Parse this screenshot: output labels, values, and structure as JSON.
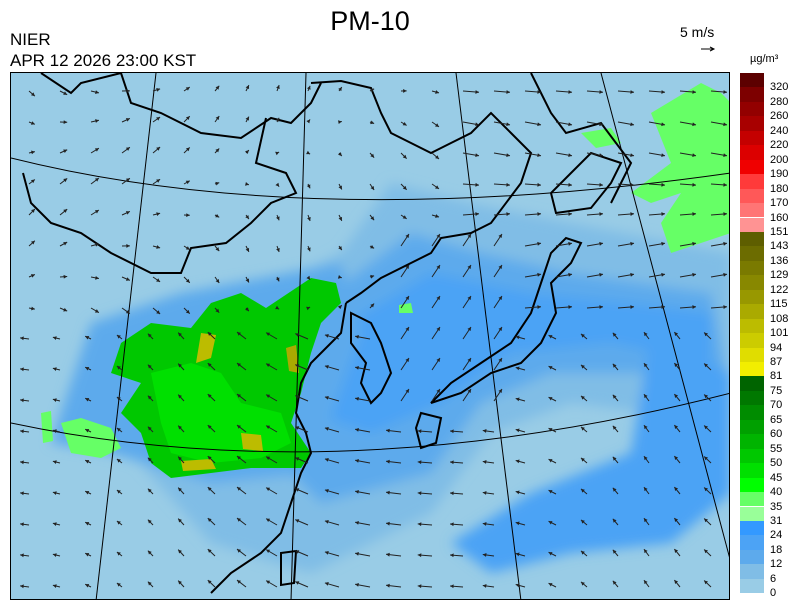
{
  "header": {
    "title": "PM-10",
    "organization": "NIER",
    "datetime": "APR 12 2026 23:00 KST",
    "wind_reference": "5 m/s"
  },
  "legend": {
    "unit": "µg/m³",
    "bins": [
      {
        "label": "320",
        "color": "#5c0000"
      },
      {
        "label": "280",
        "color": "#7d0000"
      },
      {
        "label": "260",
        "color": "#930000"
      },
      {
        "label": "240",
        "color": "#a80000"
      },
      {
        "label": "220",
        "color": "#c40000"
      },
      {
        "label": "200",
        "color": "#dc0000"
      },
      {
        "label": "190",
        "color": "#f00000"
      },
      {
        "label": "180",
        "color": "#ff3a3a"
      },
      {
        "label": "170",
        "color": "#ff5858"
      },
      {
        "label": "160",
        "color": "#ff7575"
      },
      {
        "label": "151",
        "color": "#ff9393"
      },
      {
        "label": "143",
        "color": "#5e5e00"
      },
      {
        "label": "136",
        "color": "#6c6c00"
      },
      {
        "label": "129",
        "color": "#7a7a00"
      },
      {
        "label": "122",
        "color": "#888800"
      },
      {
        "label": "115",
        "color": "#989800"
      },
      {
        "label": "108",
        "color": "#aaaa00"
      },
      {
        "label": "101",
        "color": "#bcbc00"
      },
      {
        "label": "94",
        "color": "#cccc00"
      },
      {
        "label": "87",
        "color": "#e0dd00"
      },
      {
        "label": "81",
        "color": "#f2ee00"
      },
      {
        "label": "75",
        "color": "#006400"
      },
      {
        "label": "70",
        "color": "#007800"
      },
      {
        "label": "65",
        "color": "#008c00"
      },
      {
        "label": "60",
        "color": "#00a000"
      },
      {
        "label": "55",
        "color": "#00b400"
      },
      {
        "label": "50",
        "color": "#00c800"
      },
      {
        "label": "45",
        "color": "#00e000"
      },
      {
        "label": "40",
        "color": "#00ff00"
      },
      {
        "label": "35",
        "color": "#66ff66"
      },
      {
        "label": "31",
        "color": "#99ff99"
      },
      {
        "label": "24",
        "color": "#3399ff"
      },
      {
        "label": "18",
        "color": "#4ca3f5"
      },
      {
        "label": "12",
        "color": "#5daaec"
      },
      {
        "label": "6",
        "color": "#80bde6"
      },
      {
        "label": "0",
        "color": "#99cce6"
      }
    ]
  },
  "colors": {
    "background": "#99cce6",
    "low_blue": "#80bde6",
    "mid_blue": "#5daaec",
    "high_blue": "#4ca3f5",
    "green": "#00c800",
    "light_green": "#66ff66",
    "yellow": "#bcbc00",
    "coast": "#000000"
  }
}
